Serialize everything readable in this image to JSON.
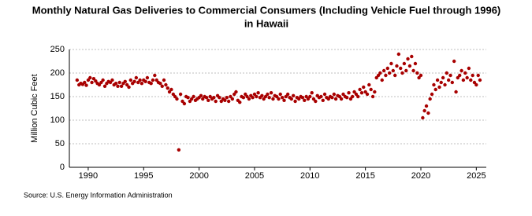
{
  "chart_data": {
    "type": "scatter",
    "title": [
      "Monthly Natural Gas Deliveries to Commercial Consumers (Including Vehicle Fuel through 1996)",
      "in Hawaii"
    ],
    "y_label": "Million Cubic Feet",
    "source": "Source: U.S. Energy Information Administration",
    "color": "#a80000",
    "grid": true,
    "xlim": [
      1988.3,
      2025.9
    ],
    "xticks": [
      1990,
      1995,
      2000,
      2005,
      2010,
      2015,
      2020,
      2025
    ],
    "ylim": [
      0,
      250
    ],
    "yticks": [
      0,
      50,
      100,
      150,
      200,
      250
    ],
    "x": [
      1989,
      1989.17,
      1989.33,
      1989.5,
      1989.67,
      1989.83,
      1990,
      1990.17,
      1990.33,
      1990.5,
      1990.67,
      1990.83,
      1991,
      1991.17,
      1991.33,
      1991.5,
      1991.67,
      1991.83,
      1992,
      1992.17,
      1992.33,
      1992.5,
      1992.67,
      1992.83,
      1993,
      1993.17,
      1993.33,
      1993.5,
      1993.67,
      1993.83,
      1994,
      1994.17,
      1994.33,
      1994.5,
      1994.67,
      1994.83,
      1995,
      1995.17,
      1995.33,
      1995.5,
      1995.67,
      1995.83,
      1996,
      1996.17,
      1996.33,
      1996.5,
      1996.67,
      1996.83,
      1997,
      1997.17,
      1997.33,
      1997.5,
      1997.67,
      1997.83,
      1998,
      1998.17,
      1998.33,
      1998.5,
      1998.67,
      1998.83,
      1999,
      1999.17,
      1999.33,
      1999.5,
      1999.67,
      1999.83,
      2000,
      2000.17,
      2000.33,
      2000.5,
      2000.67,
      2000.83,
      2001,
      2001.17,
      2001.33,
      2001.5,
      2001.67,
      2001.83,
      2002,
      2002.17,
      2002.33,
      2002.5,
      2002.67,
      2002.83,
      2003,
      2003.17,
      2003.33,
      2003.5,
      2003.67,
      2003.83,
      2004,
      2004.17,
      2004.33,
      2004.5,
      2004.67,
      2004.83,
      2005,
      2005.17,
      2005.33,
      2005.5,
      2005.67,
      2005.83,
      2006,
      2006.17,
      2006.33,
      2006.5,
      2006.67,
      2006.83,
      2007,
      2007.17,
      2007.33,
      2007.5,
      2007.67,
      2007.83,
      2008,
      2008.17,
      2008.33,
      2008.5,
      2008.67,
      2008.83,
      2009,
      2009.17,
      2009.33,
      2009.5,
      2009.67,
      2009.83,
      2010,
      2010.17,
      2010.33,
      2010.5,
      2010.67,
      2010.83,
      2011,
      2011.17,
      2011.33,
      2011.5,
      2011.67,
      2011.83,
      2012,
      2012.17,
      2012.33,
      2012.5,
      2012.67,
      2012.83,
      2013,
      2013.17,
      2013.33,
      2013.5,
      2013.67,
      2013.83,
      2014,
      2014.17,
      2014.33,
      2014.5,
      2014.67,
      2014.83,
      2015,
      2015.17,
      2015.33,
      2015.5,
      2015.67,
      2015.83,
      2016,
      2016.17,
      2016.33,
      2016.5,
      2016.67,
      2016.83,
      2017,
      2017.17,
      2017.33,
      2017.5,
      2017.67,
      2017.83,
      2018,
      2018.17,
      2018.33,
      2018.5,
      2018.67,
      2018.83,
      2019,
      2019.17,
      2019.33,
      2019.5,
      2019.67,
      2019.83,
      2020,
      2020.17,
      2020.33,
      2020.5,
      2020.67,
      2020.83,
      2021,
      2021.17,
      2021.33,
      2021.5,
      2021.67,
      2021.83,
      2022,
      2022.17,
      2022.33,
      2022.5,
      2022.67,
      2022.83,
      2023,
      2023.17,
      2023.33,
      2023.5,
      2023.67,
      2023.83,
      2024,
      2024.17,
      2024.33,
      2024.5,
      2024.67,
      2024.83,
      2025,
      2025.17,
      2025.33
    ],
    "values": [
      185,
      175,
      178,
      176,
      180,
      174,
      185,
      190,
      180,
      188,
      183,
      178,
      175,
      180,
      185,
      172,
      178,
      182,
      180,
      185,
      175,
      178,
      172,
      180,
      172,
      178,
      182,
      175,
      170,
      185,
      178,
      182,
      190,
      180,
      185,
      178,
      185,
      182,
      190,
      180,
      178,
      185,
      195,
      185,
      180,
      178,
      172,
      185,
      175,
      168,
      160,
      165,
      155,
      150,
      145,
      37,
      155,
      140,
      135,
      150,
      148,
      140,
      145,
      150,
      142,
      145,
      148,
      152,
      145,
      150,
      148,
      142,
      150,
      145,
      148,
      140,
      152,
      148,
      140,
      145,
      142,
      148,
      140,
      150,
      145,
      155,
      160,
      142,
      138,
      150,
      148,
      155,
      150,
      145,
      152,
      148,
      155,
      150,
      158,
      148,
      152,
      145,
      150,
      155,
      148,
      158,
      145,
      152,
      150,
      145,
      155,
      148,
      142,
      150,
      155,
      148,
      145,
      152,
      140,
      148,
      145,
      150,
      148,
      142,
      150,
      145,
      150,
      158,
      145,
      140,
      152,
      148,
      150,
      142,
      155,
      148,
      145,
      150,
      148,
      155,
      145,
      152,
      150,
      145,
      155,
      150,
      148,
      158,
      145,
      150,
      160,
      155,
      150,
      165,
      158,
      170,
      160,
      155,
      175,
      165,
      150,
      160,
      190,
      195,
      200,
      185,
      205,
      195,
      210,
      200,
      220,
      205,
      195,
      215,
      240,
      210,
      200,
      220,
      205,
      230,
      215,
      235,
      205,
      220,
      200,
      190,
      195,
      105,
      120,
      130,
      115,
      145,
      155,
      175,
      165,
      185,
      170,
      180,
      190,
      175,
      200,
      185,
      195,
      180,
      225,
      160,
      190,
      195,
      205,
      185,
      200,
      190,
      210,
      185,
      195,
      180,
      175,
      195,
      185
    ]
  }
}
